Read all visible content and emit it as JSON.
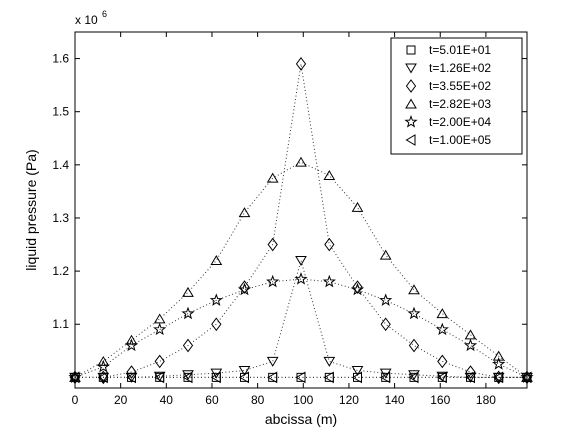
{
  "chart_data": {
    "type": "scatter",
    "title": "",
    "xlabel": "abcissa (m)",
    "ylabel": "liquid pressure (Pa)",
    "y_multiplier_label": "x 10",
    "y_multiplier_exponent": "6",
    "xlim": [
      0,
      198
    ],
    "ylim": [
      0.98,
      1.65
    ],
    "x_ticks": [
      0,
      20,
      40,
      60,
      80,
      100,
      120,
      140,
      160,
      180
    ],
    "x_tick_labels": [
      "0",
      "20",
      "40",
      "60",
      "80",
      "100",
      "120",
      "140",
      "160",
      "180"
    ],
    "y_ticks": [
      1.1,
      1.2,
      1.3,
      1.4,
      1.5,
      1.6
    ],
    "y_tick_labels": [
      "1.1",
      "1.2",
      "1.3",
      "1.4",
      "1.5",
      "1.6"
    ],
    "grid": false,
    "legend_position": "top-right",
    "line_style": "dotted",
    "x": [
      0,
      12.4,
      24.75,
      37.1,
      49.5,
      61.9,
      74.25,
      86.6,
      99,
      111.4,
      123.75,
      136.1,
      148.5,
      160.9,
      173.25,
      185.6,
      198
    ],
    "series": [
      {
        "name": "t=5.01E+01",
        "marker": "square",
        "values": [
          1.0,
          1.0,
          1.0,
          1.0,
          1.0,
          1.0,
          1.0,
          1.0,
          1.0,
          1.0,
          1.0,
          1.0,
          1.0,
          1.0,
          1.0,
          1.0,
          1.0
        ]
      },
      {
        "name": "t=1.26E+02",
        "marker": "triangle-down",
        "values": [
          1.0,
          1.0,
          1.0,
          1.002,
          1.005,
          1.008,
          1.013,
          1.03,
          1.22,
          1.03,
          1.013,
          1.008,
          1.005,
          1.002,
          1.0,
          1.0,
          1.0
        ]
      },
      {
        "name": "t=3.55E+02",
        "marker": "diamond",
        "values": [
          1.0,
          1.0,
          1.01,
          1.03,
          1.06,
          1.1,
          1.17,
          1.25,
          1.59,
          1.25,
          1.17,
          1.1,
          1.06,
          1.03,
          1.01,
          1.0,
          1.0
        ]
      },
      {
        "name": "t=2.82E+03",
        "marker": "triangle-up",
        "values": [
          1.0,
          1.03,
          1.07,
          1.11,
          1.16,
          1.22,
          1.31,
          1.375,
          1.405,
          1.38,
          1.32,
          1.23,
          1.165,
          1.12,
          1.08,
          1.04,
          1.0
        ]
      },
      {
        "name": "t=2.00E+04",
        "marker": "star",
        "values": [
          1.0,
          1.02,
          1.06,
          1.09,
          1.12,
          1.145,
          1.165,
          1.18,
          1.185,
          1.18,
          1.165,
          1.145,
          1.12,
          1.09,
          1.06,
          1.025,
          1.0
        ]
      },
      {
        "name": "t=1.00E+05",
        "marker": "triangle-left",
        "values": [
          1.0,
          1.0,
          1.0,
          1.0,
          1.0,
          1.0,
          1.0,
          1.0,
          1.0,
          1.0,
          1.0,
          1.0,
          1.0,
          1.0,
          1.0,
          1.0,
          1.0
        ]
      }
    ]
  }
}
